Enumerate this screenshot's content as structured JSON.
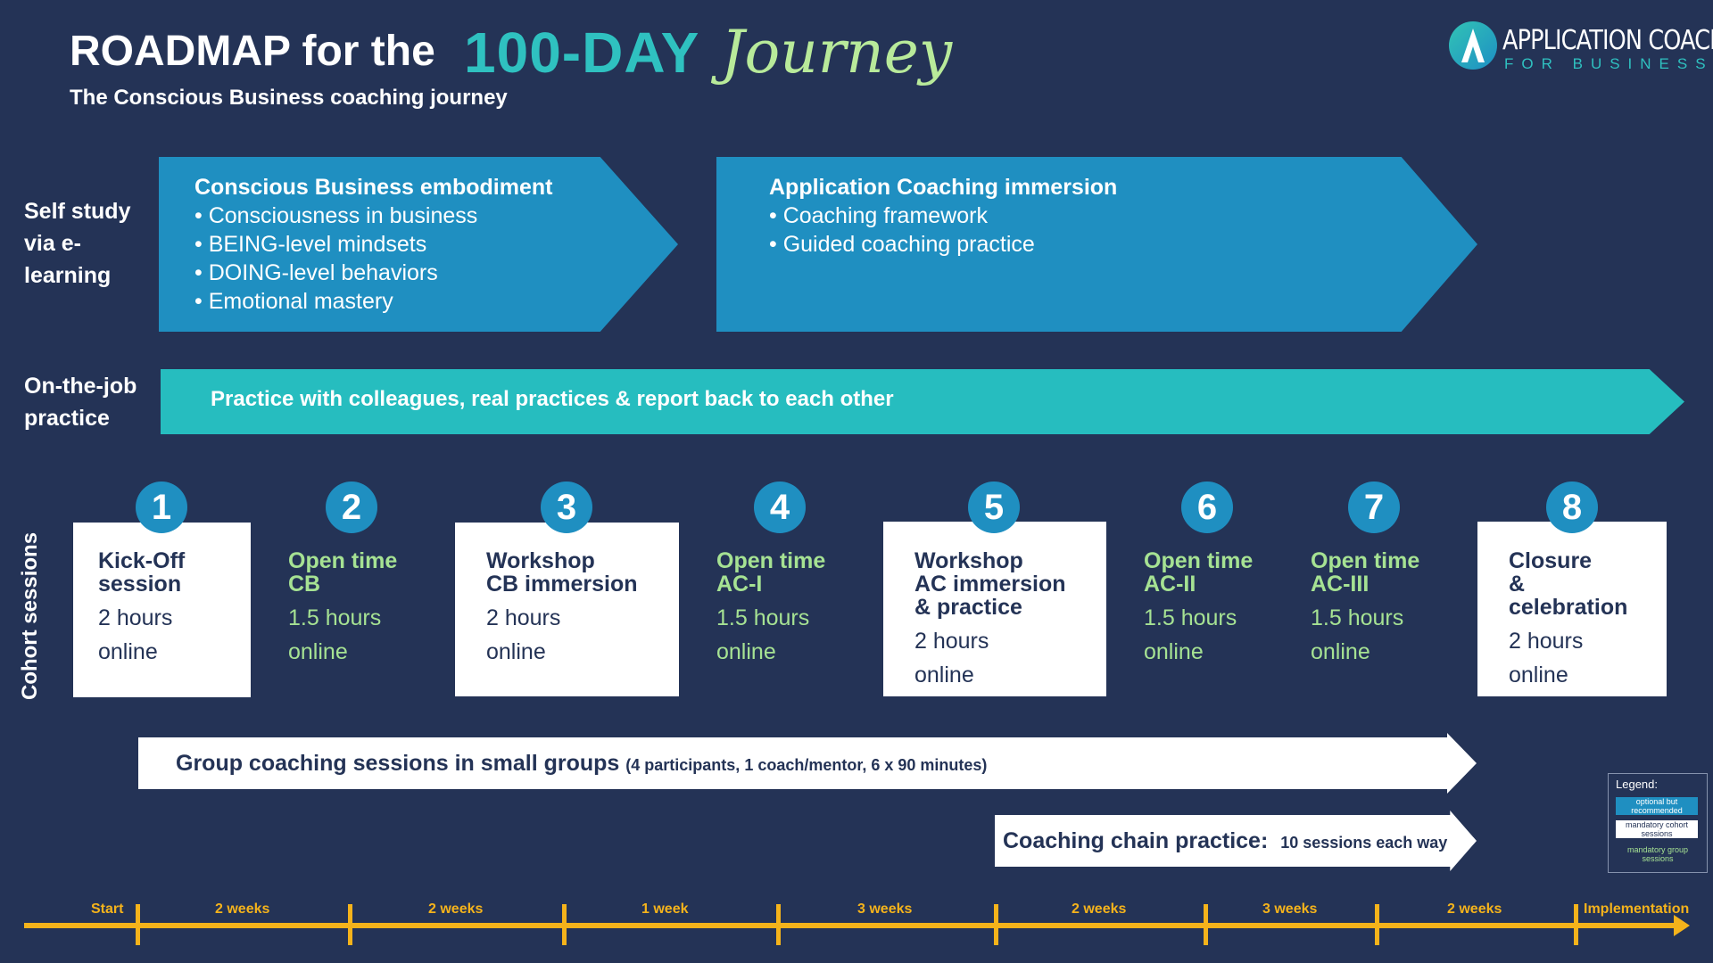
{
  "header": {
    "title_main": "ROADMAP for the",
    "title_accent": "100-DAY",
    "title_script": "Journey",
    "subtitle": "The Conscious Business coaching journey"
  },
  "logo": {
    "text": "APPLICATION COACHING",
    "subtext": "FOR BUSINESS"
  },
  "rows": {
    "self_study": "Self study via e-learning",
    "on_the_job": "On-the-job practice",
    "cohort": "Cohort sessions"
  },
  "elearning": [
    {
      "title": "Conscious Business embodiment",
      "items": [
        "• Consciousness in business",
        "• BEING-level mindsets",
        "• DOING-level behaviors",
        "• Emotional mastery"
      ]
    },
    {
      "title": "Application Coaching immersion",
      "items": [
        "• Coaching framework",
        "• Guided coaching practice"
      ]
    }
  ],
  "practice_text": "Practice with colleagues, real practices & report back to each other",
  "sessions": [
    {
      "num": "1",
      "title1": "Kick-Off",
      "title2": "session",
      "title3": "",
      "duration": "2 hours",
      "mode": "online"
    },
    {
      "num": "2",
      "title1": "Open time",
      "title2": "CB",
      "title3": "",
      "duration": "1.5 hours",
      "mode": "online"
    },
    {
      "num": "3",
      "title1": "Workshop",
      "title2": "CB immersion",
      "title3": "",
      "duration": "2 hours",
      "mode": "online"
    },
    {
      "num": "4",
      "title1": "Open time",
      "title2": "AC-I",
      "title3": "",
      "duration": "1.5 hours",
      "mode": "online"
    },
    {
      "num": "5",
      "title1": "Workshop",
      "title2": "AC immersion",
      "title3": "& practice",
      "duration": "2 hours",
      "mode": "online"
    },
    {
      "num": "6",
      "title1": "Open time",
      "title2": "AC-II",
      "title3": "",
      "duration": "1.5 hours",
      "mode": "online"
    },
    {
      "num": "7",
      "title1": "Open time",
      "title2": "AC-III",
      "title3": "",
      "duration": "1.5 hours",
      "mode": "online"
    },
    {
      "num": "8",
      "title1": "Closure",
      "title2": "&",
      "title3": "celebration",
      "duration": "2 hours",
      "mode": "online"
    }
  ],
  "group_coaching": {
    "main": "Group coaching sessions in small groups",
    "detail": "(4 participants, 1 coach/mentor, 6 x 90 minutes)"
  },
  "coaching_chain": {
    "main": "Coaching chain practice:",
    "detail": "10 sessions each way"
  },
  "legend": {
    "title": "Legend:",
    "item1": "optional but recommended",
    "item2": "mandatory cohort sessions",
    "item3": "mandatory group sessions"
  },
  "timeline": [
    "Start",
    "2 weeks",
    "2 weeks",
    "1 week",
    "3 weeks",
    "2 weeks",
    "3 weeks",
    "2 weeks",
    "Implementation"
  ],
  "colors": {
    "background": "#243356",
    "blue": "#1f8fc1",
    "teal": "#26bdbf",
    "green": "#a6e293",
    "timeline": "#f5b31b"
  }
}
